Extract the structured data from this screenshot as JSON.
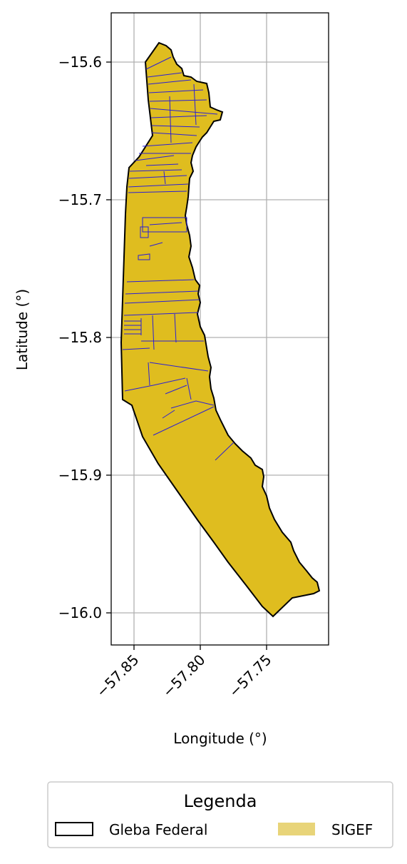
{
  "map": {
    "x_axis": {
      "label": "Longitude (°)",
      "ticks": [
        "−57.85",
        "−57.80",
        "−57.75"
      ],
      "tick_values": [
        -57.85,
        -57.8,
        -57.75
      ],
      "range": [
        -57.866,
        -57.703
      ]
    },
    "y_axis": {
      "label": "Latitude (°)",
      "ticks": [
        "−15.6",
        "−15.7",
        "−15.8",
        "−15.9",
        "−16.0"
      ],
      "tick_values": [
        -15.6,
        -15.7,
        -15.8,
        -15.9,
        -16.0
      ],
      "range": [
        -16.023,
        -15.564
      ]
    },
    "grid": true,
    "colors": {
      "gleba_outline": "#000000",
      "sigef_fill": "#dfbd1f",
      "parcel_lines": "#2a1fd6",
      "grid": "#b0b0b0"
    }
  },
  "legend": {
    "title": "Legenda",
    "placement": "bottom-center",
    "items": [
      {
        "label": "Gleba Federal",
        "swatch": "outline",
        "color": "#000000"
      },
      {
        "label": "SIGEF",
        "swatch": "fill",
        "color": "#e8d479"
      }
    ]
  }
}
